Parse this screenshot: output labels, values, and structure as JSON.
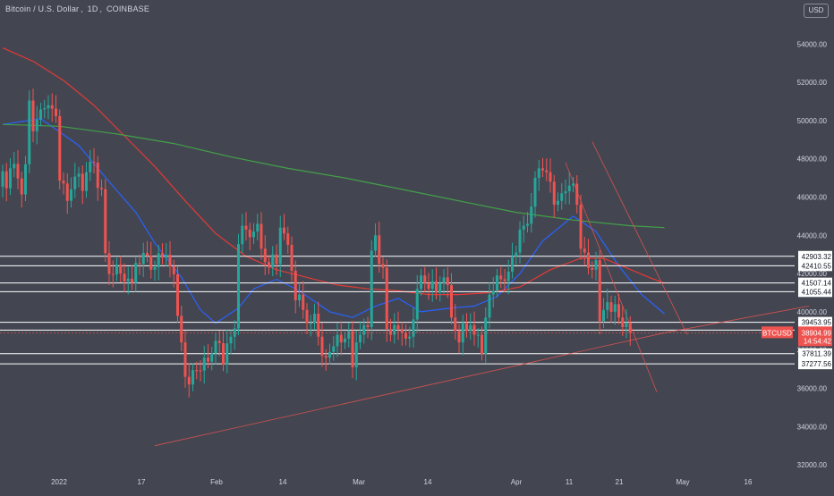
{
  "header": {
    "symbol_name": "Bitcoin / U.S. Dollar",
    "interval": "1D",
    "exchange": "COINBASE",
    "currency": "USD"
  },
  "colors": {
    "background": "#434651",
    "up": "#26a69a",
    "down": "#ef5350",
    "ma_blue": "#2962ff",
    "ma_red": "#e53935",
    "ma_green": "#43a047",
    "level_line": "#ffffff",
    "axis_text": "#d1d4dc",
    "price_tag": "#ef5350"
  },
  "chart_data": {
    "type": "candlestick",
    "symbol": "BTCUSD",
    "ylim": [
      31000,
      55000
    ],
    "x_tick_labels": [
      "2022",
      "17",
      "Feb",
      "14",
      "Mar",
      "14",
      "Apr",
      "11",
      "21",
      "May",
      "16"
    ],
    "y_tick_labels": [
      "32000.00",
      "34000.00",
      "36000.00",
      "38000.00",
      "40000.00",
      "42000.00",
      "44000.00",
      "46000.00",
      "48000.00",
      "50000.00",
      "52000.00",
      "54000.00"
    ],
    "y_ticks": [
      32000,
      34000,
      36000,
      38000,
      40000,
      42000,
      44000,
      46000,
      48000,
      50000,
      52000,
      54000
    ],
    "horizontal_levels": [
      {
        "label": "42903.32",
        "value": 42903.32
      },
      {
        "label": "42410.55",
        "value": 42410.55
      },
      {
        "label": "41507.14",
        "value": 41507.14
      },
      {
        "label": "41055.44",
        "value": 41055.44
      },
      {
        "label": "39453.95",
        "value": 39453.95
      },
      {
        "label": "39043.31",
        "value": 39043.31
      },
      {
        "label": "37811.39",
        "value": 37811.39
      },
      {
        "label": "37277.56",
        "value": 37277.56
      }
    ],
    "last_price": {
      "symbol": "BTCUSD",
      "value": 38904.99,
      "label": "38904.99",
      "countdown": "14:54:42"
    },
    "candles_close": [
      47345,
      46458,
      47504,
      47738,
      46975,
      46140,
      47710,
      51046,
      49440,
      50050,
      50580,
      50640,
      50800,
      50620,
      50230,
      46856,
      46710,
      45800,
      46410,
      47070,
      47220,
      46320,
      47300,
      47840,
      47800,
      46480,
      46410,
      43070,
      41980,
      41960,
      42470,
      42000,
      41590,
      41730,
      41510,
      42550,
      42500,
      43080,
      42940,
      42200,
      42330,
      43060,
      42830,
      42980,
      42370,
      41960,
      39790,
      38400,
      36600,
      36200,
      36950,
      36940,
      36930,
      37600,
      37400,
      37820,
      38480,
      38360,
      37250,
      38350,
      38700,
      39130,
      43540,
      44500,
      44300,
      43900,
      44200,
      44600,
      43300,
      42600,
      42320,
      43000,
      42500,
      44400,
      44100,
      43500,
      42150,
      40600,
      40900,
      40100,
      39400,
      39400,
      39900,
      38700,
      37700,
      37600,
      37900,
      38200,
      38800,
      38400,
      38600,
      39000,
      37100,
      38400,
      38800,
      39300,
      39200,
      43200,
      44000,
      42500,
      42300,
      39100,
      38800,
      39300,
      39100,
      38900,
      38600,
      38700,
      39600,
      41200,
      41900,
      41500,
      41200,
      41600,
      41000,
      41500,
      41800,
      41400,
      39700,
      39000,
      38400,
      39400,
      39000,
      39300,
      38800,
      38800,
      37800,
      39700,
      40900,
      41100,
      41900,
      41700,
      41600,
      42100,
      42900,
      43100,
      44300,
      44500,
      44600,
      45500,
      47000,
      47500,
      47400,
      47300,
      46800,
      45600,
      45800,
      46200,
      46300,
      46600,
      46700,
      45600,
      43300,
      43100,
      42300,
      42200,
      42700,
      39500,
      40100,
      40500,
      40000,
      40400,
      39700,
      39200,
      39420,
      38905
    ],
    "moving_averages": [
      {
        "color": "#2962ff",
        "values": [
          [
            0,
            49800
          ],
          [
            10,
            50100
          ],
          [
            20,
            48700
          ],
          [
            28,
            46800
          ],
          [
            35,
            45200
          ],
          [
            40,
            43600
          ],
          [
            47,
            41800
          ],
          [
            52,
            40100
          ],
          [
            56,
            39400
          ],
          [
            62,
            40200
          ],
          [
            66,
            41200
          ],
          [
            72,
            41700
          ],
          [
            78,
            41100
          ],
          [
            86,
            40000
          ],
          [
            92,
            39700
          ],
          [
            98,
            40300
          ],
          [
            104,
            40700
          ],
          [
            110,
            40000
          ],
          [
            118,
            40200
          ],
          [
            124,
            40300
          ],
          [
            130,
            40800
          ],
          [
            136,
            42000
          ],
          [
            142,
            43700
          ],
          [
            150,
            45000
          ],
          [
            156,
            44200
          ],
          [
            162,
            42400
          ],
          [
            168,
            40900
          ],
          [
            174,
            39900
          ]
        ]
      },
      {
        "color": "#e53935",
        "values": [
          [
            0,
            53800
          ],
          [
            8,
            53100
          ],
          [
            16,
            52100
          ],
          [
            24,
            50800
          ],
          [
            32,
            49200
          ],
          [
            40,
            47600
          ],
          [
            48,
            45800
          ],
          [
            56,
            44100
          ],
          [
            64,
            42900
          ],
          [
            72,
            42200
          ],
          [
            80,
            41800
          ],
          [
            88,
            41400
          ],
          [
            96,
            41200
          ],
          [
            104,
            41100
          ],
          [
            112,
            40900
          ],
          [
            120,
            40900
          ],
          [
            128,
            41000
          ],
          [
            136,
            41300
          ],
          [
            144,
            42200
          ],
          [
            152,
            42800
          ],
          [
            158,
            42800
          ],
          [
            164,
            42300
          ],
          [
            170,
            41800
          ],
          [
            174,
            41500
          ]
        ]
      },
      {
        "color": "#43a047",
        "values": [
          [
            0,
            49800
          ],
          [
            15,
            49700
          ],
          [
            30,
            49300
          ],
          [
            45,
            48800
          ],
          [
            60,
            48100
          ],
          [
            75,
            47500
          ],
          [
            90,
            47000
          ],
          [
            105,
            46400
          ],
          [
            120,
            45800
          ],
          [
            135,
            45200
          ],
          [
            150,
            44800
          ],
          [
            165,
            44500
          ],
          [
            174,
            44400
          ]
        ]
      }
    ],
    "trendlines": [
      {
        "color": "#ef5350",
        "from": [
          40,
          33000
        ],
        "to": [
          174,
          38900
        ]
      },
      {
        "color": "#ef5350",
        "from": [
          174,
          38900
        ],
        "to": [
          212,
          40300
        ]
      },
      {
        "color": "#ef5350",
        "from": [
          148,
          47800
        ],
        "to": [
          172,
          35800
        ]
      },
      {
        "color": "#ef5350",
        "from": [
          155,
          48900
        ],
        "to": [
          180,
          38800
        ]
      }
    ]
  }
}
